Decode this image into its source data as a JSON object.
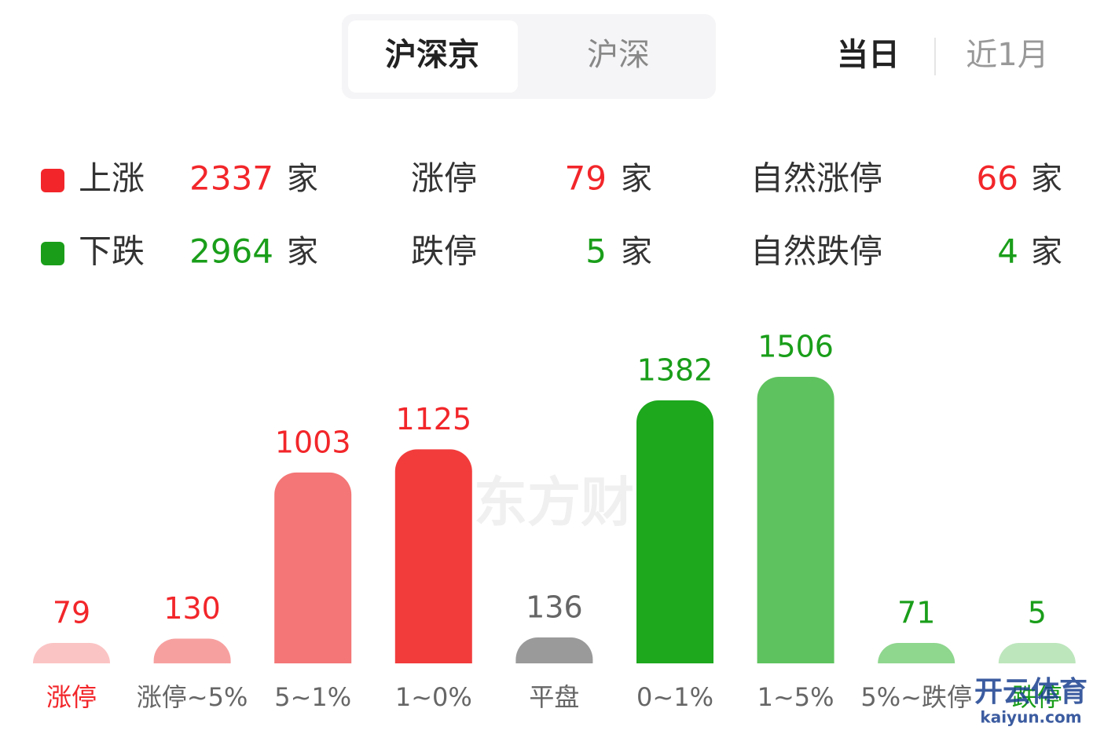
{
  "tabs": [
    "沪深京",
    "沪深"
  ],
  "periods": [
    "当日",
    "近1月"
  ],
  "summary": [
    {
      "color": "#f2262a",
      "items": [
        {
          "label": "上涨",
          "value": 2337,
          "unit": "家"
        },
        {
          "label": "涨停",
          "value": 79,
          "unit": "家"
        },
        {
          "label": "自然涨停",
          "value": 66,
          "unit": "家"
        }
      ]
    },
    {
      "color": "#1a9e1a",
      "items": [
        {
          "label": "下跌",
          "value": 2964,
          "unit": "家"
        },
        {
          "label": "跌停",
          "value": 5,
          "unit": "家"
        },
        {
          "label": "自然跌停",
          "value": 4,
          "unit": "家"
        }
      ]
    }
  ],
  "watermark": "东方财",
  "logo": {
    "title": "开云体育",
    "site": "kaiyun.com"
  },
  "chart_data": {
    "type": "bar",
    "categories": [
      "涨停",
      "涨停~5%",
      "5~1%",
      "1~0%",
      "平盘",
      "0~1%",
      "1~5%",
      "5%~跌停",
      "跌停"
    ],
    "values": [
      79,
      130,
      1003,
      1125,
      136,
      1382,
      1506,
      71,
      5
    ],
    "colors": [
      "#fbc4c4",
      "#f7a0a0",
      "#f47676",
      "#f23c3c",
      "#9a9a9a",
      "#1da81d",
      "#5ec35e",
      "#8fd68f",
      "#bde6bd"
    ],
    "label_colors": [
      "#f2262a",
      "#f2262a",
      "#f2262a",
      "#f2262a",
      "#666666",
      "#1a9e1a",
      "#1a9e1a",
      "#1a9e1a",
      "#1a9e1a"
    ],
    "category_colors": [
      "#f2262a",
      "#666666",
      "#666666",
      "#666666",
      "#666666",
      "#666666",
      "#666666",
      "#666666",
      "#1a9e1a"
    ]
  }
}
